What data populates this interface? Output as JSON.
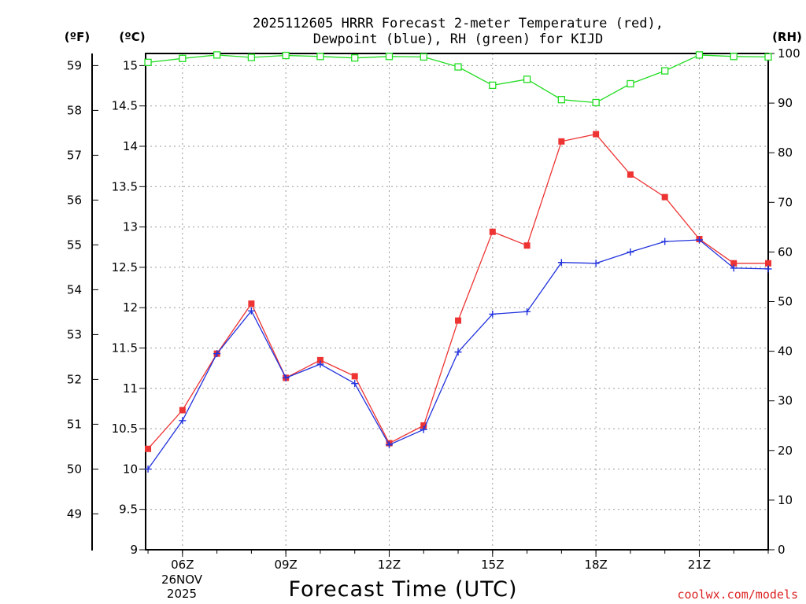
{
  "chart_data": {
    "type": "line",
    "title_line1": "2025112605 HRRR Forecast 2-meter Temperature (red),",
    "title_line2": "Dewpoint (blue), RH (green) for KIJD",
    "xlabel": "Forecast Time (UTC)",
    "credit": "coolwx.com/models",
    "unit_f": "(ºF)",
    "unit_c": "(ºC)",
    "unit_rh": "(RH)",
    "x_hours": [
      5,
      6,
      7,
      8,
      9,
      10,
      11,
      12,
      13,
      14,
      15,
      16,
      17,
      18,
      19,
      20,
      21,
      22,
      23
    ],
    "x_tick_labels": [
      {
        "hour": 6,
        "label": "06Z"
      },
      {
        "hour": 9,
        "label": "09Z"
      },
      {
        "hour": 12,
        "label": "12Z"
      },
      {
        "hour": 15,
        "label": "15Z"
      },
      {
        "hour": 18,
        "label": "18Z"
      },
      {
        "hour": 21,
        "label": "21Z"
      }
    ],
    "date_label_line1": "26NOV",
    "date_label_line2": "2025",
    "left_c_axis": {
      "min": 9,
      "max": 15.15,
      "ticks": [
        "9",
        "9.5",
        "10",
        "10.5",
        "11",
        "11.5",
        "12",
        "12.5",
        "13",
        "13.5",
        "14",
        "14.5",
        "15"
      ]
    },
    "left_f_axis": {
      "ticks": [
        "49",
        "50",
        "51",
        "52",
        "53",
        "54",
        "55",
        "56",
        "57",
        "58",
        "59"
      ]
    },
    "right_rh_axis": {
      "min": 0,
      "max": 100,
      "ticks": [
        "0",
        "10",
        "20",
        "30",
        "40",
        "50",
        "60",
        "70",
        "80",
        "90",
        "100"
      ]
    },
    "series": [
      {
        "name": "Temperature",
        "color": "#ee3333",
        "marker": "filled-square",
        "values_c": [
          10.25,
          10.73,
          11.43,
          12.05,
          11.13,
          11.35,
          11.15,
          10.32,
          10.54,
          11.84,
          12.94,
          12.77,
          14.06,
          14.15,
          13.65,
          13.37,
          12.85,
          12.55,
          12.55
        ]
      },
      {
        "name": "Dewpoint",
        "color": "#2233dd",
        "marker": "plus",
        "values_c": [
          10.0,
          10.6,
          11.43,
          11.96,
          11.13,
          11.3,
          11.06,
          10.3,
          10.49,
          11.45,
          11.92,
          11.95,
          12.56,
          12.55,
          12.69,
          12.82,
          12.84,
          12.49,
          12.48
        ]
      },
      {
        "name": "RH",
        "color": "#22dd22",
        "marker": "open-square",
        "values_rh": [
          98.2,
          99.0,
          99.7,
          99.2,
          99.6,
          99.4,
          99.1,
          99.4,
          99.3,
          97.3,
          93.6,
          94.8,
          90.7,
          90.1,
          93.9,
          96.5,
          99.7,
          99.4,
          99.3
        ]
      }
    ]
  }
}
